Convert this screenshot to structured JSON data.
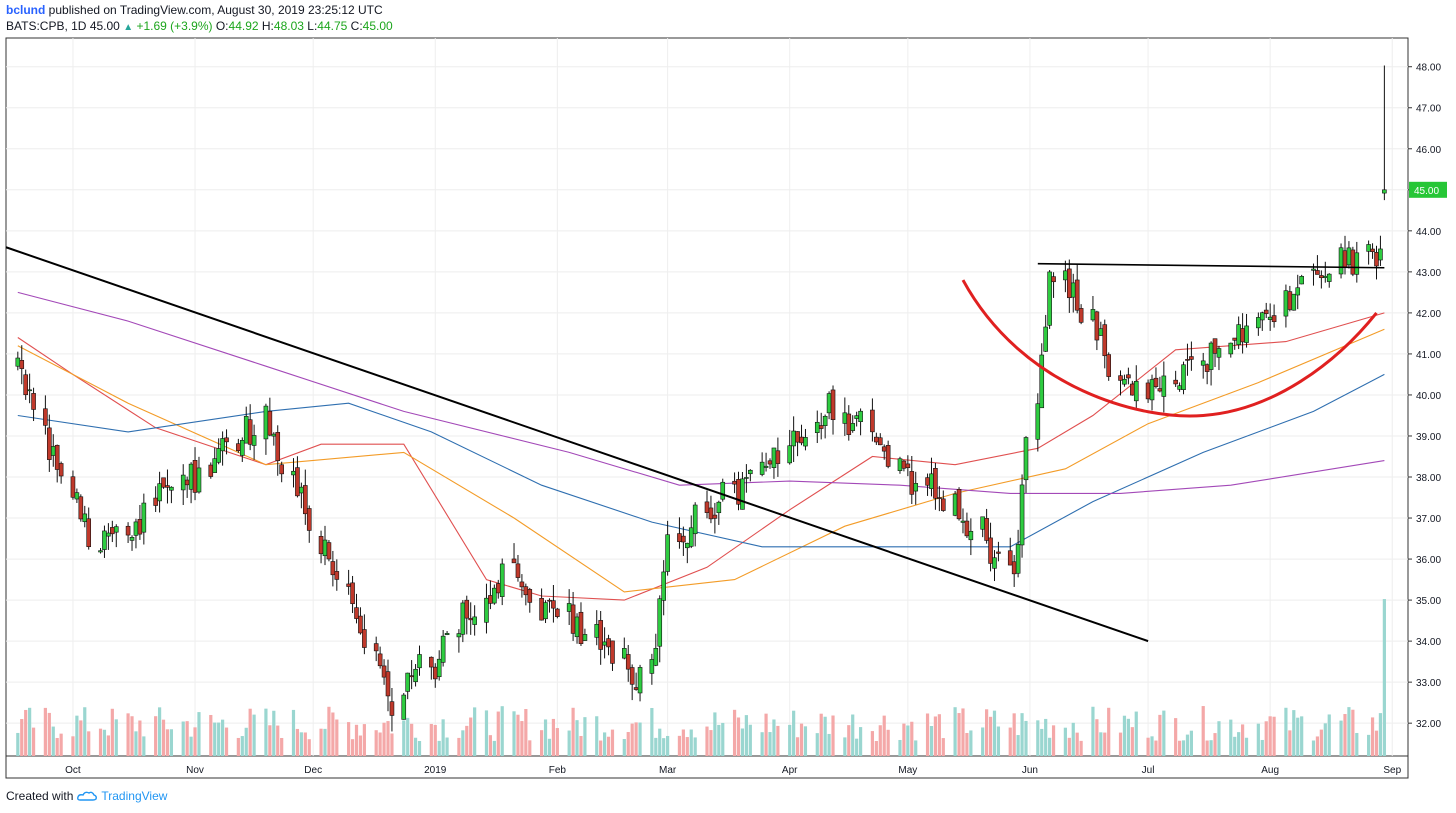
{
  "header": {
    "author": "bclund",
    "published_text": "published on TradingView.com, August 30, 2019 23:25:12 UTC",
    "symbol": "BATS:CPB, 1D",
    "last": "45.00",
    "change": "+1.69 (+3.9%)",
    "o_label": "O:",
    "o_value": "44.92",
    "h_label": "H:",
    "h_value": "48.03",
    "l_label": "L:",
    "l_value": "44.75",
    "c_label": "C:",
    "c_value": "45.00"
  },
  "footer": {
    "created_with": "Created with",
    "brand": "TradingView"
  },
  "colors": {
    "up": "#26a69a",
    "down": "#ef5350",
    "candle_up": "#2ecc40",
    "candle_down": "#c0392b",
    "vol_up": "#9ad6d0",
    "vol_down": "#f4a8a8",
    "ma20": "#e05050",
    "ma50": "#f39c28",
    "ma100": "#2f6fb0",
    "ma200": "#a349b8",
    "trendline": "#000000",
    "cup": "#e02020"
  },
  "chart_data": {
    "type": "candlestick",
    "title": "",
    "yaxis_ticks": [
      "48.00",
      "47.00",
      "46.00",
      "45.00",
      "44.00",
      "43.00",
      "42.00",
      "41.00",
      "40.00",
      "39.00",
      "38.00",
      "37.00",
      "36.00",
      "35.00",
      "34.00",
      "33.00",
      "32.00"
    ],
    "ylim": [
      31.2,
      48.7
    ],
    "last_price_label": "45.00",
    "x_month_labels": [
      "Oct",
      "Nov",
      "Dec",
      "2019",
      "Feb",
      "Mar",
      "Apr",
      "May",
      "Jun",
      "Jul",
      "Aug",
      "Sep"
    ],
    "xlim": [
      "2018-09-14",
      "2019-09-05"
    ],
    "key_points": [
      {
        "date": "2018-09-17",
        "close": 40.9
      },
      {
        "date": "2018-10-05",
        "close": 36.3
      },
      {
        "date": "2018-11-19",
        "close": 39.3
      },
      {
        "date": "2018-12-21",
        "close": 32.5
      },
      {
        "date": "2019-01-18",
        "close": 35.6
      },
      {
        "date": "2019-02-25",
        "close": 33.0
      },
      {
        "date": "2019-03-01",
        "close": 36.3
      },
      {
        "date": "2019-04-12",
        "close": 39.8
      },
      {
        "date": "2019-05-28",
        "close": 35.8
      },
      {
        "date": "2019-06-06",
        "close": 43.0
      },
      {
        "date": "2019-06-28",
        "close": 39.8
      },
      {
        "date": "2019-08-22",
        "close": 43.5
      },
      {
        "date": "2019-08-29",
        "close": 43.3
      },
      {
        "date": "2019-08-30",
        "open": 44.92,
        "high": 48.03,
        "low": 44.75,
        "close": 45.0
      }
    ],
    "moving_averages": [
      {
        "color": "ma20",
        "points": [
          [
            0,
            41.4
          ],
          [
            10,
            40.5
          ],
          [
            25,
            39.2
          ],
          [
            45,
            38.3
          ],
          [
            55,
            38.8
          ],
          [
            70,
            38.8
          ],
          [
            85,
            35.5
          ],
          [
            95,
            35.1
          ],
          [
            110,
            35.0
          ],
          [
            125,
            35.8
          ],
          [
            140,
            37.2
          ],
          [
            155,
            38.5
          ],
          [
            170,
            38.3
          ],
          [
            185,
            38.7
          ],
          [
            195,
            39.5
          ],
          [
            210,
            41.1
          ],
          [
            230,
            41.3
          ],
          [
            250,
            42.0
          ]
        ]
      },
      {
        "color": "ma50",
        "points": [
          [
            0,
            41.2
          ],
          [
            20,
            39.8
          ],
          [
            45,
            38.3
          ],
          [
            70,
            38.6
          ],
          [
            90,
            37.0
          ],
          [
            110,
            35.2
          ],
          [
            130,
            35.5
          ],
          [
            150,
            36.8
          ],
          [
            170,
            37.6
          ],
          [
            190,
            38.2
          ],
          [
            205,
            39.3
          ],
          [
            225,
            40.3
          ],
          [
            250,
            41.6
          ]
        ]
      },
      {
        "color": "ma100",
        "points": [
          [
            0,
            39.5
          ],
          [
            20,
            39.1
          ],
          [
            45,
            39.6
          ],
          [
            60,
            39.8
          ],
          [
            75,
            39.1
          ],
          [
            95,
            37.8
          ],
          [
            115,
            36.9
          ],
          [
            135,
            36.3
          ],
          [
            160,
            36.3
          ],
          [
            180,
            36.3
          ],
          [
            195,
            37.4
          ],
          [
            215,
            38.6
          ],
          [
            235,
            39.6
          ],
          [
            250,
            40.5
          ]
        ]
      },
      {
        "color": "ma200",
        "points": [
          [
            0,
            42.5
          ],
          [
            20,
            41.8
          ],
          [
            45,
            40.7
          ],
          [
            70,
            39.6
          ],
          [
            100,
            38.6
          ],
          [
            120,
            37.8
          ],
          [
            140,
            37.9
          ],
          [
            160,
            37.8
          ],
          [
            180,
            37.6
          ],
          [
            200,
            37.6
          ],
          [
            220,
            37.8
          ],
          [
            250,
            38.4
          ]
        ]
      }
    ],
    "annotations": [
      {
        "kind": "trendline",
        "from": {
          "date": "2018-09-14",
          "price": 43.6
        },
        "to": {
          "date": "2019-07-01",
          "price": 34.0
        }
      },
      {
        "kind": "horizontal",
        "from": {
          "date": "2019-06-03",
          "price": 43.2
        },
        "to": {
          "date": "2019-08-30",
          "price": 43.1
        }
      },
      {
        "kind": "cup_arc",
        "from": {
          "date": "2019-05-15",
          "price": 42.8
        },
        "bottom": {
          "date": "2019-07-15",
          "price": 39.5
        },
        "to": {
          "date": "2019-08-28",
          "price": 42.0
        }
      }
    ]
  }
}
